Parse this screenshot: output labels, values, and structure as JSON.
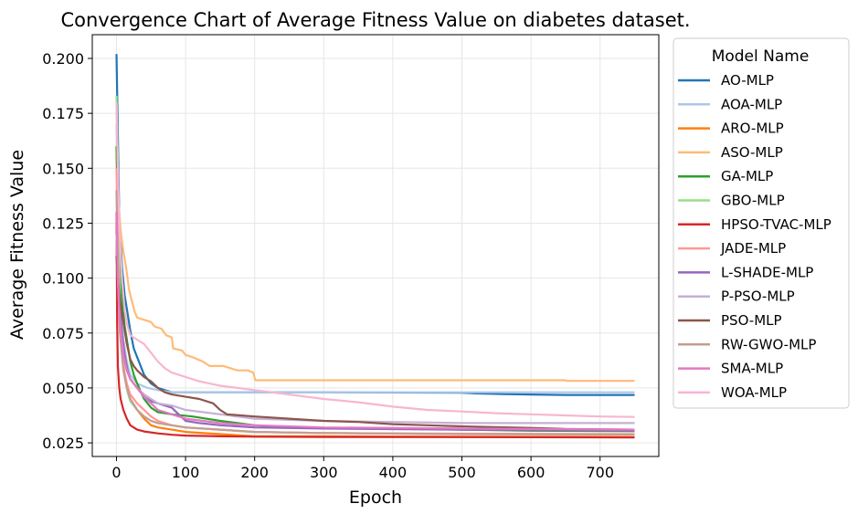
{
  "chart_data": {
    "type": "line",
    "title": "Convergence Chart of Average Fitness Value on diabetes dataset.",
    "xlabel": "Epoch",
    "ylabel": "Average Fitness Value",
    "xlim": [
      -35,
      785
    ],
    "ylim": [
      0.0188,
      0.2108
    ],
    "xticks": [
      0,
      100,
      200,
      300,
      400,
      500,
      600,
      700
    ],
    "yticks": [
      0.025,
      0.05,
      0.075,
      0.1,
      0.125,
      0.15,
      0.175,
      0.2
    ],
    "ytick_labels": [
      "0.025",
      "0.050",
      "0.075",
      "0.100",
      "0.125",
      "0.150",
      "0.175",
      "0.200"
    ],
    "grid": true,
    "legend": {
      "title": "Model Name",
      "placement": "outside-right"
    },
    "series": [
      {
        "name": "AO-MLP",
        "color": "#1f77b4",
        "points": [
          [
            0,
            0.202
          ],
          [
            2,
            0.165
          ],
          [
            4,
            0.128
          ],
          [
            8,
            0.105
          ],
          [
            12,
            0.092
          ],
          [
            16,
            0.084
          ],
          [
            20,
            0.076
          ],
          [
            25,
            0.068
          ],
          [
            30,
            0.064
          ],
          [
            40,
            0.056
          ],
          [
            50,
            0.052
          ],
          [
            60,
            0.05
          ],
          [
            70,
            0.049
          ],
          [
            80,
            0.048
          ],
          [
            150,
            0.048
          ],
          [
            300,
            0.048
          ],
          [
            500,
            0.0478
          ],
          [
            520,
            0.0475
          ],
          [
            560,
            0.0472
          ],
          [
            600,
            0.047
          ],
          [
            650,
            0.0468
          ],
          [
            750,
            0.0468
          ]
        ]
      },
      {
        "name": "AOA-MLP",
        "color": "#aec7e8",
        "points": [
          [
            0,
            0.17
          ],
          [
            3,
            0.12
          ],
          [
            6,
            0.09
          ],
          [
            10,
            0.072
          ],
          [
            15,
            0.062
          ],
          [
            20,
            0.056
          ],
          [
            30,
            0.052
          ],
          [
            45,
            0.05
          ],
          [
            60,
            0.049
          ],
          [
            80,
            0.048
          ],
          [
            200,
            0.048
          ],
          [
            300,
            0.048
          ],
          [
            500,
            0.048
          ],
          [
            750,
            0.048
          ]
        ]
      },
      {
        "name": "ARO-MLP",
        "color": "#ff7f0e",
        "points": [
          [
            0,
            0.16
          ],
          [
            2,
            0.12
          ],
          [
            5,
            0.085
          ],
          [
            10,
            0.06
          ],
          [
            15,
            0.05
          ],
          [
            20,
            0.045
          ],
          [
            30,
            0.04
          ],
          [
            40,
            0.036
          ],
          [
            50,
            0.033
          ],
          [
            60,
            0.032
          ],
          [
            80,
            0.031
          ],
          [
            100,
            0.03
          ],
          [
            150,
            0.029
          ],
          [
            200,
            0.028
          ],
          [
            300,
            0.028
          ],
          [
            500,
            0.0278
          ],
          [
            750,
            0.0277
          ]
        ]
      },
      {
        "name": "ASO-MLP",
        "color": "#ffbb78",
        "points": [
          [
            0,
            0.178
          ],
          [
            3,
            0.135
          ],
          [
            6,
            0.122
          ],
          [
            10,
            0.112
          ],
          [
            14,
            0.105
          ],
          [
            18,
            0.095
          ],
          [
            22,
            0.09
          ],
          [
            26,
            0.085
          ],
          [
            30,
            0.082
          ],
          [
            40,
            0.081
          ],
          [
            50,
            0.08
          ],
          [
            55,
            0.078
          ],
          [
            65,
            0.077
          ],
          [
            72,
            0.074
          ],
          [
            80,
            0.073
          ],
          [
            82,
            0.068
          ],
          [
            95,
            0.067
          ],
          [
            100,
            0.065
          ],
          [
            110,
            0.064
          ],
          [
            125,
            0.062
          ],
          [
            135,
            0.06
          ],
          [
            155,
            0.06
          ],
          [
            165,
            0.059
          ],
          [
            175,
            0.058
          ],
          [
            190,
            0.058
          ],
          [
            198,
            0.057
          ],
          [
            201,
            0.0535
          ],
          [
            300,
            0.0535
          ],
          [
            500,
            0.0535
          ],
          [
            600,
            0.0535
          ],
          [
            650,
            0.0535
          ],
          [
            652,
            0.0532
          ],
          [
            750,
            0.0532
          ]
        ]
      },
      {
        "name": "GA-MLP",
        "color": "#2ca02c",
        "points": [
          [
            0,
            0.16
          ],
          [
            2,
            0.13
          ],
          [
            5,
            0.1
          ],
          [
            8,
            0.09
          ],
          [
            12,
            0.078
          ],
          [
            16,
            0.07
          ],
          [
            20,
            0.062
          ],
          [
            25,
            0.056
          ],
          [
            30,
            0.052
          ],
          [
            40,
            0.045
          ],
          [
            50,
            0.041
          ],
          [
            60,
            0.039
          ],
          [
            80,
            0.038
          ],
          [
            110,
            0.037
          ],
          [
            150,
            0.035
          ],
          [
            200,
            0.033
          ],
          [
            250,
            0.032
          ],
          [
            300,
            0.0318
          ],
          [
            400,
            0.0315
          ],
          [
            500,
            0.031
          ],
          [
            600,
            0.0305
          ],
          [
            750,
            0.0303
          ]
        ]
      },
      {
        "name": "GBO-MLP",
        "color": "#98df8a",
        "points": [
          [
            0,
            0.183
          ],
          [
            2,
            0.15
          ],
          [
            4,
            0.1
          ],
          [
            8,
            0.07
          ],
          [
            12,
            0.055
          ],
          [
            16,
            0.048
          ],
          [
            20,
            0.044
          ],
          [
            30,
            0.04
          ],
          [
            40,
            0.037
          ],
          [
            50,
            0.035
          ],
          [
            60,
            0.034
          ],
          [
            80,
            0.033
          ],
          [
            100,
            0.032
          ],
          [
            150,
            0.031
          ],
          [
            200,
            0.03
          ],
          [
            300,
            0.0295
          ],
          [
            500,
            0.029
          ],
          [
            750,
            0.0288
          ]
        ]
      },
      {
        "name": "HPSO-TVAC-MLP",
        "color": "#d62728",
        "points": [
          [
            0,
            0.13
          ],
          [
            1,
            0.08
          ],
          [
            2,
            0.06
          ],
          [
            4,
            0.05
          ],
          [
            6,
            0.045
          ],
          [
            10,
            0.04
          ],
          [
            15,
            0.036
          ],
          [
            20,
            0.033
          ],
          [
            30,
            0.031
          ],
          [
            40,
            0.0302
          ],
          [
            60,
            0.0293
          ],
          [
            80,
            0.0287
          ],
          [
            100,
            0.0283
          ],
          [
            150,
            0.028
          ],
          [
            200,
            0.0278
          ],
          [
            300,
            0.0277
          ],
          [
            500,
            0.0276
          ],
          [
            750,
            0.0275
          ]
        ]
      },
      {
        "name": "JADE-MLP",
        "color": "#ff9896",
        "points": [
          [
            0,
            0.15
          ],
          [
            2,
            0.11
          ],
          [
            5,
            0.08
          ],
          [
            10,
            0.06
          ],
          [
            15,
            0.052
          ],
          [
            20,
            0.047
          ],
          [
            30,
            0.043
          ],
          [
            40,
            0.04
          ],
          [
            50,
            0.037
          ],
          [
            60,
            0.035
          ],
          [
            80,
            0.033
          ],
          [
            100,
            0.032
          ],
          [
            150,
            0.031
          ],
          [
            200,
            0.03
          ],
          [
            300,
            0.0295
          ],
          [
            500,
            0.0292
          ],
          [
            750,
            0.029
          ]
        ]
      },
      {
        "name": "L-SHADE-MLP",
        "color": "#9467bd",
        "points": [
          [
            0,
            0.11
          ],
          [
            2,
            0.1
          ],
          [
            4,
            0.09
          ],
          [
            8,
            0.075
          ],
          [
            12,
            0.065
          ],
          [
            16,
            0.058
          ],
          [
            20,
            0.054
          ],
          [
            30,
            0.05
          ],
          [
            40,
            0.046
          ],
          [
            50,
            0.044
          ],
          [
            60,
            0.043
          ],
          [
            80,
            0.041
          ],
          [
            90,
            0.038
          ],
          [
            100,
            0.035
          ],
          [
            120,
            0.034
          ],
          [
            150,
            0.033
          ],
          [
            200,
            0.032
          ],
          [
            300,
            0.0315
          ],
          [
            500,
            0.031
          ],
          [
            750,
            0.0305
          ]
        ]
      },
      {
        "name": "P-PSO-MLP",
        "color": "#c5b0d5",
        "points": [
          [
            0,
            0.12
          ],
          [
            2,
            0.1
          ],
          [
            5,
            0.08
          ],
          [
            10,
            0.065
          ],
          [
            15,
            0.058
          ],
          [
            20,
            0.054
          ],
          [
            30,
            0.05
          ],
          [
            40,
            0.047
          ],
          [
            50,
            0.045
          ],
          [
            60,
            0.043
          ],
          [
            80,
            0.042
          ],
          [
            100,
            0.04
          ],
          [
            150,
            0.038
          ],
          [
            200,
            0.036
          ],
          [
            300,
            0.035
          ],
          [
            400,
            0.0345
          ],
          [
            500,
            0.034
          ],
          [
            750,
            0.034
          ]
        ]
      },
      {
        "name": "PSO-MLP",
        "color": "#8c564b",
        "points": [
          [
            0,
            0.11
          ],
          [
            2,
            0.1
          ],
          [
            5,
            0.09
          ],
          [
            10,
            0.08
          ],
          [
            15,
            0.07
          ],
          [
            20,
            0.063
          ],
          [
            25,
            0.06
          ],
          [
            30,
            0.058
          ],
          [
            40,
            0.055
          ],
          [
            50,
            0.053
          ],
          [
            60,
            0.05
          ],
          [
            70,
            0.048
          ],
          [
            80,
            0.047
          ],
          [
            100,
            0.046
          ],
          [
            120,
            0.045
          ],
          [
            140,
            0.043
          ],
          [
            150,
            0.04
          ],
          [
            160,
            0.038
          ],
          [
            200,
            0.037
          ],
          [
            250,
            0.036
          ],
          [
            300,
            0.035
          ],
          [
            350,
            0.0345
          ],
          [
            400,
            0.0335
          ],
          [
            450,
            0.033
          ],
          [
            500,
            0.0325
          ],
          [
            600,
            0.0318
          ],
          [
            650,
            0.0313
          ],
          [
            750,
            0.031
          ]
        ]
      },
      {
        "name": "RW-GWO-MLP",
        "color": "#c49c94",
        "points": [
          [
            0,
            0.14
          ],
          [
            2,
            0.1
          ],
          [
            5,
            0.075
          ],
          [
            10,
            0.058
          ],
          [
            15,
            0.05
          ],
          [
            20,
            0.045
          ],
          [
            30,
            0.04
          ],
          [
            40,
            0.037
          ],
          [
            50,
            0.035
          ],
          [
            60,
            0.034
          ],
          [
            80,
            0.033
          ],
          [
            100,
            0.032
          ],
          [
            150,
            0.031
          ],
          [
            200,
            0.03
          ],
          [
            300,
            0.0295
          ],
          [
            500,
            0.029
          ],
          [
            750,
            0.0288
          ]
        ]
      },
      {
        "name": "SMA-MLP",
        "color": "#e377c2",
        "points": [
          [
            0,
            0.13
          ],
          [
            2,
            0.1
          ],
          [
            5,
            0.08
          ],
          [
            10,
            0.065
          ],
          [
            15,
            0.058
          ],
          [
            20,
            0.054
          ],
          [
            30,
            0.05
          ],
          [
            40,
            0.046
          ],
          [
            50,
            0.043
          ],
          [
            60,
            0.04
          ],
          [
            80,
            0.038
          ],
          [
            100,
            0.036
          ],
          [
            150,
            0.034
          ],
          [
            200,
            0.033
          ],
          [
            300,
            0.032
          ],
          [
            500,
            0.0315
          ],
          [
            750,
            0.031
          ]
        ]
      },
      {
        "name": "WOA-MLP",
        "color": "#f7b6d2",
        "points": [
          [
            0,
            0.18
          ],
          [
            2,
            0.15
          ],
          [
            4,
            0.125
          ],
          [
            8,
            0.1
          ],
          [
            12,
            0.085
          ],
          [
            16,
            0.078
          ],
          [
            20,
            0.074
          ],
          [
            30,
            0.072
          ],
          [
            40,
            0.07
          ],
          [
            50,
            0.066
          ],
          [
            60,
            0.062
          ],
          [
            70,
            0.059
          ],
          [
            80,
            0.057
          ],
          [
            100,
            0.055
          ],
          [
            120,
            0.053
          ],
          [
            150,
            0.051
          ],
          [
            200,
            0.049
          ],
          [
            250,
            0.047
          ],
          [
            300,
            0.045
          ],
          [
            350,
            0.0435
          ],
          [
            400,
            0.0415
          ],
          [
            450,
            0.04
          ],
          [
            500,
            0.0393
          ],
          [
            550,
            0.0385
          ],
          [
            600,
            0.038
          ],
          [
            650,
            0.0375
          ],
          [
            700,
            0.037
          ],
          [
            750,
            0.0368
          ]
        ]
      }
    ]
  }
}
